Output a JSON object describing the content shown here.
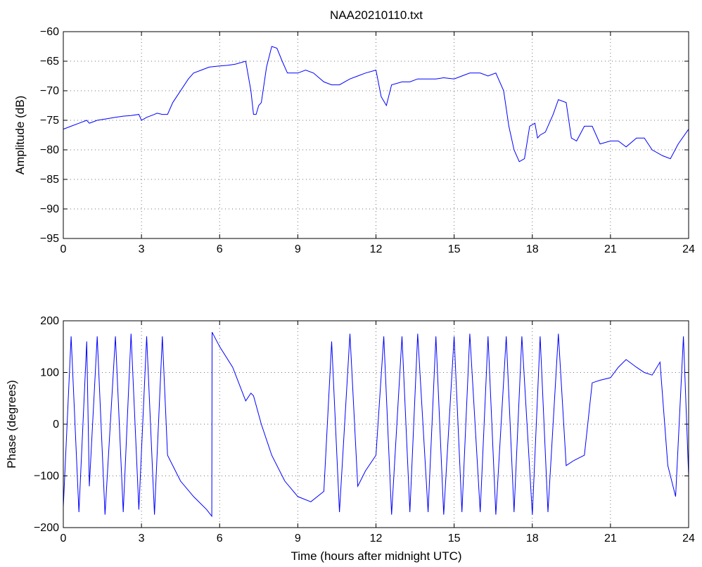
{
  "chart_data": [
    {
      "type": "line",
      "title": "NAA20210110.txt",
      "xlabel": "",
      "ylabel": "Amplitude (dB)",
      "xlim": [
        0,
        24
      ],
      "ylim": [
        -95,
        -60
      ],
      "xticks": [
        0,
        3,
        6,
        9,
        12,
        15,
        18,
        21,
        24
      ],
      "yticks": [
        -95,
        -90,
        -85,
        -80,
        -75,
        -70,
        -65,
        -60
      ],
      "ytick_labels": [
        "−95",
        "−90",
        "−85",
        "−80",
        "−75",
        "−70",
        "−65",
        "−60"
      ],
      "grid": true,
      "color": "#0000ff",
      "series": [
        {
          "x": [
            0,
            0.3,
            0.6,
            0.9,
            1.0,
            1.3,
            1.6,
            2.0,
            2.3,
            2.6,
            2.9,
            3.0,
            3.2,
            3.5,
            3.6,
            3.8,
            4.0,
            4.2,
            4.5,
            4.8,
            5.0,
            5.3,
            5.6,
            6.0,
            6.3,
            6.6,
            7.0,
            7.2,
            7.3,
            7.4,
            7.5,
            7.6,
            7.8,
            8.0,
            8.2,
            8.4,
            8.6,
            9.0,
            9.3,
            9.6,
            10.0,
            10.3,
            10.6,
            11.0,
            11.3,
            11.6,
            12.0,
            12.2,
            12.4,
            12.6,
            13.0,
            13.3,
            13.6,
            14.0,
            14.3,
            14.6,
            15.0,
            15.3,
            15.6,
            16.0,
            16.3,
            16.6,
            16.9,
            17.1,
            17.3,
            17.5,
            17.7,
            17.9,
            18.1,
            18.2,
            18.3,
            18.5,
            18.8,
            19.0,
            19.3,
            19.5,
            19.7,
            20.0,
            20.3,
            20.6,
            21.0,
            21.3,
            21.6,
            22.0,
            22.3,
            22.6,
            23.0,
            23.3,
            23.6,
            24.0
          ],
          "y": [
            -76.5,
            -76.0,
            -75.5,
            -75.0,
            -75.5,
            -75.0,
            -74.8,
            -74.5,
            -74.3,
            -74.2,
            -74.0,
            -75.0,
            -74.5,
            -74.0,
            -73.8,
            -74.0,
            -74.0,
            -72.0,
            -70.0,
            -68.0,
            -67.0,
            -66.5,
            -66.0,
            -65.8,
            -65.7,
            -65.5,
            -65.0,
            -70.0,
            -74.0,
            -74.0,
            -72.5,
            -72.0,
            -66.0,
            -62.5,
            -62.8,
            -65.0,
            -67.0,
            -67.0,
            -66.5,
            -67.0,
            -68.5,
            -69.0,
            -69.0,
            -68.0,
            -67.5,
            -67.0,
            -66.5,
            -71.0,
            -72.5,
            -69.0,
            -68.5,
            -68.5,
            -68.0,
            -68.0,
            -68.0,
            -67.8,
            -68.0,
            -67.5,
            -67.0,
            -67.0,
            -67.5,
            -67.0,
            -70.0,
            -76.0,
            -80.0,
            -82.0,
            -81.5,
            -76.0,
            -75.5,
            -78.0,
            -77.5,
            -77.0,
            -74.0,
            -71.5,
            -72.0,
            -78.0,
            -78.5,
            -76.0,
            -76.0,
            -79.0,
            -78.5,
            -78.5,
            -79.5,
            -78.0,
            -78.0,
            -80.0,
            -81.0,
            -81.5,
            -79.0,
            -76.5
          ]
        }
      ]
    },
    {
      "type": "line",
      "title": "",
      "xlabel": "Time (hours after midnight UTC)",
      "ylabel": "Phase (degrees)",
      "xlim": [
        0,
        24
      ],
      "ylim": [
        -200,
        200
      ],
      "xticks": [
        0,
        3,
        6,
        9,
        12,
        15,
        18,
        21,
        24
      ],
      "yticks": [
        -200,
        -100,
        0,
        100,
        200
      ],
      "ytick_labels": [
        "−200",
        "−100",
        "0",
        "100",
        "200"
      ],
      "grid": true,
      "color": "#0000ff",
      "series": [
        {
          "x": [
            0,
            0.3,
            0.6,
            0.9,
            1.0,
            1.3,
            1.6,
            2.0,
            2.3,
            2.6,
            2.9,
            3.2,
            3.5,
            3.8,
            4.0,
            4.5,
            5.0,
            5.5,
            5.7,
            5.71,
            6.0,
            6.5,
            7.0,
            7.2,
            7.3,
            7.6,
            8.0,
            8.5,
            9.0,
            9.5,
            10.0,
            10.3,
            10.6,
            11.0,
            11.3,
            11.6,
            12.0,
            12.3,
            12.6,
            13.0,
            13.3,
            13.6,
            14.0,
            14.3,
            14.6,
            15.0,
            15.3,
            15.6,
            16.0,
            16.3,
            16.6,
            17.0,
            17.3,
            17.6,
            18.0,
            18.3,
            18.6,
            19.0,
            19.3,
            19.6,
            20.0,
            20.3,
            20.6,
            21.0,
            21.3,
            21.6,
            22.0,
            22.3,
            22.6,
            22.9,
            23.2,
            23.5,
            23.8,
            24.0
          ],
          "y": [
            -160,
            170,
            -170,
            160,
            -120,
            170,
            -175,
            170,
            -170,
            175,
            -165,
            170,
            -175,
            170,
            -60,
            -110,
            -140,
            -165,
            -178,
            178,
            150,
            110,
            45,
            60,
            55,
            0,
            -60,
            -110,
            -140,
            -150,
            -130,
            160,
            -170,
            175,
            -120,
            -90,
            -60,
            170,
            -175,
            170,
            -170,
            175,
            -170,
            170,
            -175,
            170,
            -170,
            175,
            -170,
            170,
            -175,
            170,
            -170,
            170,
            -175,
            170,
            -170,
            175,
            -80,
            -70,
            -60,
            80,
            85,
            90,
            110,
            125,
            110,
            100,
            95,
            120,
            -80,
            -140,
            170,
            -100
          ]
        }
      ]
    }
  ]
}
